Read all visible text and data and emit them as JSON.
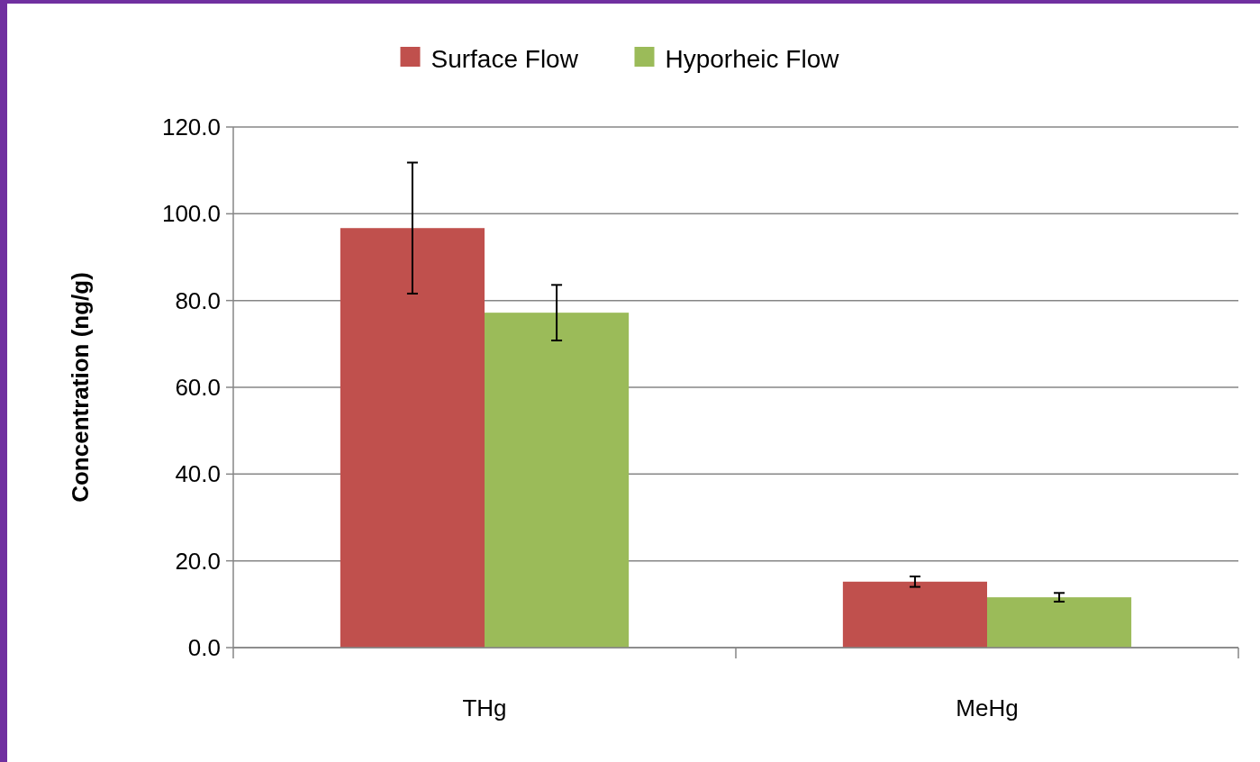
{
  "chart_data": {
    "type": "bar",
    "ylabel": "Concentration (ng/g)",
    "categories": [
      "THg",
      "MeHg"
    ],
    "series": [
      {
        "name": "Surface Flow",
        "color": "#c0504d",
        "values": [
          96.7,
          15.2
        ],
        "errors": [
          15.1,
          1.2
        ]
      },
      {
        "name": "Hyporheic Flow",
        "color": "#9bbb59",
        "values": [
          77.2,
          11.6
        ],
        "errors": [
          6.4,
          1.0
        ]
      }
    ],
    "ylim": [
      0,
      120
    ],
    "yticks": [
      {
        "value": 0,
        "label": "0.0"
      },
      {
        "value": 20,
        "label": "20.0"
      },
      {
        "value": 40,
        "label": "40.0"
      },
      {
        "value": 60,
        "label": "60.0"
      },
      {
        "value": 80,
        "label": "80.0"
      },
      {
        "value": 100,
        "label": "100.0"
      },
      {
        "value": 120,
        "label": "120.0"
      }
    ],
    "grid": "y",
    "legend": "top"
  }
}
